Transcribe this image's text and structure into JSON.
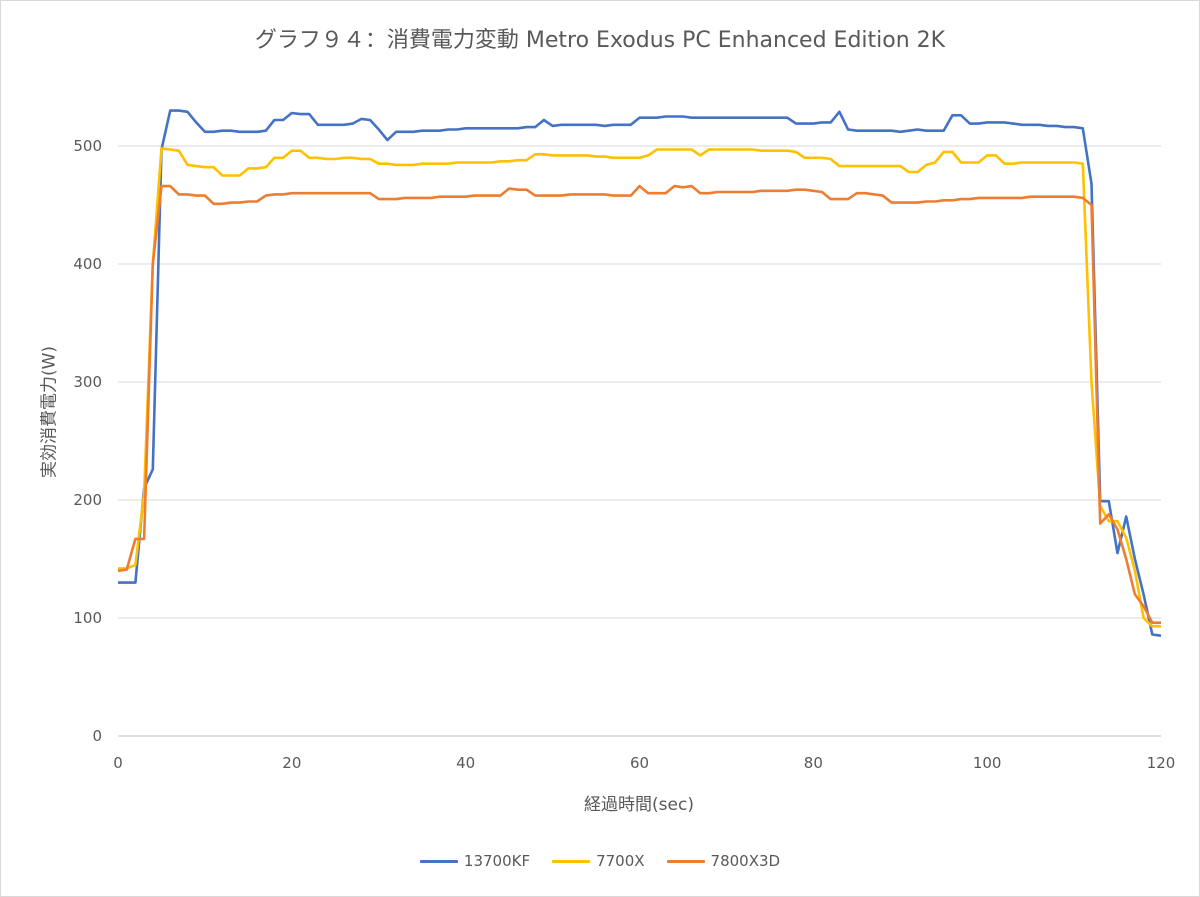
{
  "chart_data": {
    "type": "line",
    "title": "グラフ９４：消費電力変動 Metro Exodus PC Enhanced Edition 2K",
    "xlabel": "経過時間(sec)",
    "ylabel": "実効消費電力(W)",
    "xlim": [
      0,
      120
    ],
    "ylim": [
      0,
      550
    ],
    "xticks": [
      0,
      20,
      40,
      60,
      80,
      100,
      120
    ],
    "yticks": [
      0,
      100,
      200,
      300,
      400,
      500
    ],
    "grid": "horizontal",
    "legend_position": "bottom",
    "series": [
      {
        "name": "13700KF",
        "color": "#4472c4",
        "x": [
          0,
          1,
          2,
          3,
          4,
          5,
          6,
          7,
          8,
          9,
          10,
          11,
          12,
          13,
          14,
          15,
          16,
          17,
          18,
          19,
          20,
          21,
          22,
          23,
          24,
          25,
          26,
          27,
          28,
          29,
          30,
          31,
          32,
          33,
          34,
          35,
          36,
          37,
          38,
          39,
          40,
          41,
          42,
          43,
          44,
          45,
          46,
          47,
          48,
          49,
          50,
          51,
          52,
          53,
          54,
          55,
          56,
          57,
          58,
          59,
          60,
          61,
          62,
          63,
          64,
          65,
          66,
          67,
          68,
          69,
          70,
          71,
          72,
          73,
          74,
          75,
          76,
          77,
          78,
          79,
          80,
          81,
          82,
          83,
          84,
          85,
          86,
          87,
          88,
          89,
          90,
          91,
          92,
          93,
          94,
          95,
          96,
          97,
          98,
          99,
          100,
          101,
          102,
          103,
          104,
          105,
          106,
          107,
          108,
          109,
          110,
          111,
          112,
          113,
          114,
          115,
          116,
          117,
          118,
          119,
          120
        ],
        "y": [
          130,
          130,
          130,
          210,
          226,
          497,
          530,
          530,
          529,
          520,
          512,
          512,
          513,
          513,
          512,
          512,
          512,
          513,
          522,
          522,
          528,
          527,
          527,
          518,
          518,
          518,
          518,
          519,
          523,
          522,
          514,
          505,
          512,
          512,
          512,
          513,
          513,
          513,
          514,
          514,
          515,
          515,
          515,
          515,
          515,
          515,
          515,
          516,
          516,
          522,
          517,
          518,
          518,
          518,
          518,
          518,
          517,
          518,
          518,
          518,
          524,
          524,
          524,
          525,
          525,
          525,
          524,
          524,
          524,
          524,
          524,
          524,
          524,
          524,
          524,
          524,
          524,
          524,
          519,
          519,
          519,
          520,
          520,
          529,
          514,
          513,
          513,
          513,
          513,
          513,
          512,
          513,
          514,
          513,
          513,
          513,
          526,
          526,
          519,
          519,
          520,
          520,
          520,
          519,
          518,
          518,
          518,
          517,
          517,
          516,
          516,
          515,
          468,
          199,
          199,
          155,
          186,
          150,
          120,
          86,
          85
        ]
      },
      {
        "name": "7700X",
        "color": "#ffc000",
        "x": [
          0,
          1,
          2,
          3,
          4,
          5,
          6,
          7,
          8,
          9,
          10,
          11,
          12,
          13,
          14,
          15,
          16,
          17,
          18,
          19,
          20,
          21,
          22,
          23,
          24,
          25,
          26,
          27,
          28,
          29,
          30,
          31,
          32,
          33,
          34,
          35,
          36,
          37,
          38,
          39,
          40,
          41,
          42,
          43,
          44,
          45,
          46,
          47,
          48,
          49,
          50,
          51,
          52,
          53,
          54,
          55,
          56,
          57,
          58,
          59,
          60,
          61,
          62,
          63,
          64,
          65,
          66,
          67,
          68,
          69,
          70,
          71,
          72,
          73,
          74,
          75,
          76,
          77,
          78,
          79,
          80,
          81,
          82,
          83,
          84,
          85,
          86,
          87,
          88,
          89,
          90,
          91,
          92,
          93,
          94,
          95,
          96,
          97,
          98,
          99,
          100,
          101,
          102,
          103,
          104,
          105,
          106,
          107,
          108,
          109,
          110,
          111,
          112,
          113,
          114,
          115,
          116,
          117,
          118,
          119,
          120
        ],
        "y": [
          142,
          142,
          145,
          205,
          400,
          498,
          497,
          496,
          484,
          483,
          482,
          482,
          475,
          475,
          475,
          481,
          481,
          482,
          490,
          490,
          496,
          496,
          490,
          490,
          489,
          489,
          490,
          490,
          489,
          489,
          485,
          485,
          484,
          484,
          484,
          485,
          485,
          485,
          485,
          486,
          486,
          486,
          486,
          486,
          487,
          487,
          488,
          488,
          493,
          493,
          492,
          492,
          492,
          492,
          492,
          491,
          491,
          490,
          490,
          490,
          490,
          492,
          497,
          497,
          497,
          497,
          497,
          492,
          497,
          497,
          497,
          497,
          497,
          497,
          496,
          496,
          496,
          496,
          495,
          490,
          490,
          490,
          489,
          483,
          483,
          483,
          483,
          483,
          483,
          483,
          483,
          478,
          478,
          484,
          486,
          495,
          495,
          486,
          486,
          486,
          492,
          492,
          485,
          485,
          486,
          486,
          486,
          486,
          486,
          486,
          486,
          485,
          300,
          195,
          182,
          182,
          168,
          140,
          100,
          93,
          93
        ]
      },
      {
        "name": "7800X3D",
        "color": "#ed7d31",
        "x": [
          0,
          1,
          2,
          3,
          4,
          5,
          6,
          7,
          8,
          9,
          10,
          11,
          12,
          13,
          14,
          15,
          16,
          17,
          18,
          19,
          20,
          21,
          22,
          23,
          24,
          25,
          26,
          27,
          28,
          29,
          30,
          31,
          32,
          33,
          34,
          35,
          36,
          37,
          38,
          39,
          40,
          41,
          42,
          43,
          44,
          45,
          46,
          47,
          48,
          49,
          50,
          51,
          52,
          53,
          54,
          55,
          56,
          57,
          58,
          59,
          60,
          61,
          62,
          63,
          64,
          65,
          66,
          67,
          68,
          69,
          70,
          71,
          72,
          73,
          74,
          75,
          76,
          77,
          78,
          79,
          80,
          81,
          82,
          83,
          84,
          85,
          86,
          87,
          88,
          89,
          90,
          91,
          92,
          93,
          94,
          95,
          96,
          97,
          98,
          99,
          100,
          101,
          102,
          103,
          104,
          105,
          106,
          107,
          108,
          109,
          110,
          111,
          112,
          113,
          114,
          115,
          116,
          117,
          118,
          119,
          120
        ],
        "y": [
          140,
          141,
          167,
          167,
          400,
          466,
          466,
          459,
          459,
          458,
          458,
          451,
          451,
          452,
          452,
          453,
          453,
          458,
          459,
          459,
          460,
          460,
          460,
          460,
          460,
          460,
          460,
          460,
          460,
          460,
          455,
          455,
          455,
          456,
          456,
          456,
          456,
          457,
          457,
          457,
          457,
          458,
          458,
          458,
          458,
          464,
          463,
          463,
          458,
          458,
          458,
          458,
          459,
          459,
          459,
          459,
          459,
          458,
          458,
          458,
          466,
          460,
          460,
          460,
          466,
          465,
          466,
          460,
          460,
          461,
          461,
          461,
          461,
          461,
          462,
          462,
          462,
          462,
          463,
          463,
          462,
          461,
          455,
          455,
          455,
          460,
          460,
          459,
          458,
          452,
          452,
          452,
          452,
          453,
          453,
          454,
          454,
          455,
          455,
          456,
          456,
          456,
          456,
          456,
          456,
          457,
          457,
          457,
          457,
          457,
          457,
          456,
          450,
          180,
          188,
          175,
          150,
          120,
          110,
          96,
          96
        ]
      }
    ]
  }
}
